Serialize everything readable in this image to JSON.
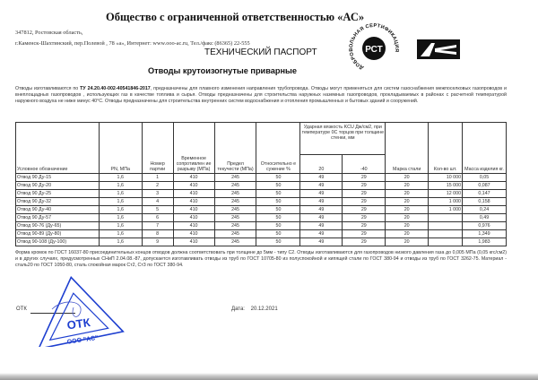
{
  "header": {
    "org": "Общество с ограниченной ответственностью «АС»",
    "address1": "347812, Ростовская область,",
    "address2": "г.Каменск-Шахтинский,  пер.Полевой , 78 «а», Интернет: www.ooo-ac.ru, Тел./факс (86365) 22-555",
    "doc_title": "ТЕХНИЧЕСКИЙ ПАСПОРТ",
    "product": "Отводы крутоизогнутые приварные",
    "cert_logo_text": "ДОБРОВОЛЬНАЯ СЕРТИФИКАЦИЯ",
    "cert_logo_mark": "РСТ",
    "brand_logo": "АС"
  },
  "intro": {
    "pre": "Отводы изготавливаются по ",
    "tu": "ТУ 24.20.40-002-40541846-2017",
    "post": ", предназначены для плавного изменения направления трубопровода. Отводы могут применяться для систем газоснабжения межпоселковых газопроводов и внеплощадных газопроводов , использующих газ в качестве топлива и сырья.  Отводы предназначены для строительства наружных наземных газопроводов, прокладываемых в районах с расчетной температурой наружного воздуха не ниже минус 40°С. Отводы предназначены для строительства  внутренних систем водоснабжения и отопления промышленных и бытовых зданий и сооружений."
  },
  "table": {
    "headers": {
      "designation": "Условное обозначение",
      "pn": "PN, МПа",
      "batch": "Номер партии",
      "tensile": "Временное сопротивлен ие разрыву (МПа)",
      "yield": "Предел текучести (МПа)",
      "narrowing": "Относительно е сужение %",
      "impact": "Ударная вязкость KCU Дж/см2, при температуре 0С торцов при толщине стенки, мм",
      "impact_20": "20",
      "impact_m40": "-40",
      "steel": "Марка стали",
      "qty": "Кол-во шт.",
      "mass": "Масса изделия кг."
    },
    "rows": [
      [
        "Отвод 90 Ду-15",
        "1,6",
        "1",
        "410",
        "245",
        "50",
        "49",
        "29",
        "20",
        "10 000",
        "0,05"
      ],
      [
        "Отвод 90 Ду-20",
        "1,6",
        "2",
        "410",
        "245",
        "50",
        "49",
        "29",
        "20",
        "15 000",
        "0,087"
      ],
      [
        "Отвод 90 Ду-25",
        "1,6",
        "3",
        "410",
        "245",
        "50",
        "49",
        "29",
        "20",
        "12 000",
        "0,147"
      ],
      [
        "Отвод 90 Ду-32",
        "1,6",
        "4",
        "410",
        "245",
        "50",
        "49",
        "29",
        "20",
        "1 000",
        "0,158"
      ],
      [
        "Отвод 90 Ду-40",
        "1,6",
        "5",
        "410",
        "245",
        "50",
        "49",
        "29",
        "20",
        "1 000",
        "0,24"
      ],
      [
        "Отвод 90 Ду-57",
        "1,6",
        "6",
        "410",
        "245",
        "50",
        "49",
        "29",
        "20",
        "",
        "0,49"
      ],
      [
        "Отвод 90-76 (Ду-65)",
        "1,6",
        "7",
        "410",
        "245",
        "50",
        "49",
        "29",
        "20",
        "",
        "0,976"
      ],
      [
        "Отвод 90-89 (Ду-80)",
        "1,6",
        "8",
        "410",
        "245",
        "50",
        "49",
        "29",
        "20",
        "",
        "1,349"
      ],
      [
        "Отвод 90-108 (Ду-100)",
        "1,6",
        "9",
        "410",
        "245",
        "50",
        "49",
        "29",
        "20",
        "",
        "1,983"
      ]
    ]
  },
  "footer": {
    "text": "Форма кромок по ГОСТ 16037-80 присоединительных концов отводов должна соответствовать при толщине до 5мм - типу С2. Отводы изготавливаются для газопроводов низкого давления газа до 0,005 МПа (0,05 кгс/см2) и в других случаях, предусмотренных СНиП 2.04.08.-87, допускается изготавливать отводы из труб по ГОСТ 10705-80 из полуспокойной и кипящей стали по ГОСТ 380-94 и отводы из труб по ГОСТ 3262-75. Материал - сталь20 по ГОСТ 1050-80, сталь спокойная марок Ст2, Ст3 по ГОСТ 380-94.",
    "otk_label": "ОТК",
    "date_label": "Дата:",
    "date": "20.12.2021",
    "stamp_center": "ОТК",
    "stamp_bottom": "ООО \"АС\"",
    "stamp_color": "#1e3fd0"
  }
}
